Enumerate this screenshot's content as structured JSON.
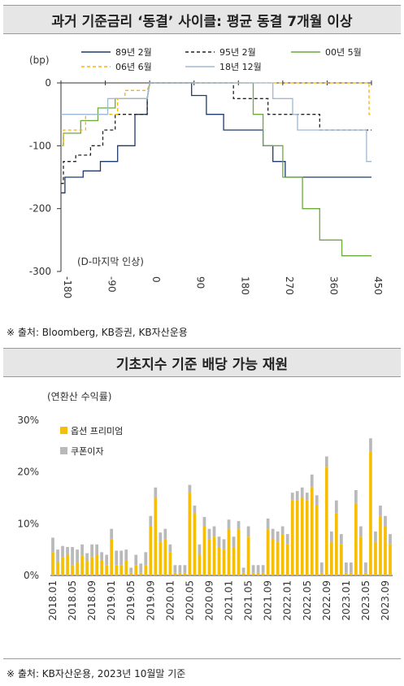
{
  "chart1": {
    "title": "과거 기준금리 ‘동결’ 사이클: 평균 동결 7개월 이상",
    "unit_label": "(bp)",
    "annotation": "(D-마지막 인상)",
    "source": "※ 출처: Bloomberg, KB증권, KB자산운용",
    "chart_data": {
      "type": "line",
      "title": "과거 기준금리 ‘동결’ 사이클: 평균 동결 7개월 이상",
      "ylabel": "(bp)",
      "xlim": [
        -180,
        450
      ],
      "ylim": [
        -300,
        0
      ],
      "x_ticks": [
        "-180",
        "-90",
        "0",
        "90",
        "180",
        "270",
        "360",
        "450"
      ],
      "y_ticks": [
        "0",
        "-100",
        "-200",
        "-300"
      ],
      "legend_position": "top",
      "series": [
        {
          "name": "89년 2월",
          "color": "#1f3a6e",
          "dash": "",
          "points": [
            [
              -180,
              -175
            ],
            [
              -172,
              -175
            ],
            [
              -172,
              -150
            ],
            [
              -135,
              -150
            ],
            [
              -135,
              -140
            ],
            [
              -100,
              -140
            ],
            [
              -100,
              -125
            ],
            [
              -65,
              -125
            ],
            [
              -65,
              -100
            ],
            [
              -30,
              -100
            ],
            [
              -30,
              -50
            ],
            [
              -5,
              -50
            ],
            [
              -5,
              -25
            ],
            [
              0,
              0
            ],
            [
              85,
              0
            ],
            [
              85,
              -20
            ],
            [
              115,
              -20
            ],
            [
              115,
              -50
            ],
            [
              150,
              -50
            ],
            [
              150,
              -75
            ],
            [
              230,
              -75
            ],
            [
              230,
              -100
            ],
            [
              250,
              -100
            ],
            [
              250,
              -125
            ],
            [
              275,
              -125
            ],
            [
              275,
              -150
            ],
            [
              450,
              -150
            ]
          ]
        },
        {
          "name": "95년 2월",
          "color": "#222222",
          "dash": "4,3",
          "points": [
            [
              -180,
              -160
            ],
            [
              -175,
              -160
            ],
            [
              -175,
              -125
            ],
            [
              -150,
              -125
            ],
            [
              -150,
              -115
            ],
            [
              -120,
              -115
            ],
            [
              -120,
              -100
            ],
            [
              -95,
              -100
            ],
            [
              -95,
              -75
            ],
            [
              -70,
              -75
            ],
            [
              -70,
              -50
            ],
            [
              -5,
              -50
            ],
            [
              -5,
              -25
            ],
            [
              0,
              0
            ],
            [
              170,
              0
            ],
            [
              170,
              -25
            ],
            [
              240,
              -25
            ],
            [
              240,
              -50
            ],
            [
              345,
              -50
            ],
            [
              345,
              -75
            ],
            [
              450,
              -75
            ]
          ]
        },
        {
          "name": "00년 5월",
          "color": "#6aaa3a",
          "dash": "",
          "points": [
            [
              -180,
              -100
            ],
            [
              -175,
              -100
            ],
            [
              -175,
              -80
            ],
            [
              -140,
              -80
            ],
            [
              -140,
              -60
            ],
            [
              -105,
              -60
            ],
            [
              -105,
              -40
            ],
            [
              -70,
              -40
            ],
            [
              -70,
              -25
            ],
            [
              -5,
              -25
            ],
            [
              0,
              0
            ],
            [
              210,
              0
            ],
            [
              210,
              -50
            ],
            [
              230,
              -50
            ],
            [
              230,
              -100
            ],
            [
              270,
              -100
            ],
            [
              270,
              -150
            ],
            [
              310,
              -150
            ],
            [
              310,
              -200
            ],
            [
              345,
              -200
            ],
            [
              345,
              -250
            ],
            [
              390,
              -250
            ],
            [
              390,
              -275
            ],
            [
              450,
              -275
            ]
          ]
        },
        {
          "name": "06년 6월",
          "color": "#f2b705",
          "dash": "4,3",
          "points": [
            [
              -180,
              -100
            ],
            [
              -175,
              -100
            ],
            [
              -175,
              -75
            ],
            [
              -130,
              -75
            ],
            [
              -130,
              -50
            ],
            [
              -65,
              -50
            ],
            [
              -65,
              -25
            ],
            [
              -50,
              -25
            ],
            [
              -50,
              -12
            ],
            [
              -30,
              -12
            ],
            [
              -5,
              -12
            ],
            [
              0,
              0
            ],
            [
              445,
              0
            ],
            [
              445,
              -50
            ],
            [
              450,
              -50
            ]
          ]
        },
        {
          "name": "18년 12월",
          "color": "#9fb8d6",
          "dash": "",
          "points": [
            [
              -180,
              -50
            ],
            [
              -85,
              -50
            ],
            [
              -85,
              -25
            ],
            [
              -5,
              -25
            ],
            [
              0,
              0
            ],
            [
              250,
              0
            ],
            [
              250,
              -25
            ],
            [
              290,
              -25
            ],
            [
              290,
              -50
            ],
            [
              300,
              -50
            ],
            [
              300,
              -75
            ],
            [
              440,
              -75
            ],
            [
              440,
              -125
            ],
            [
              450,
              -125
            ]
          ]
        }
      ]
    }
  },
  "chart2": {
    "title": "기초지수 기준 배당 가능 재원",
    "unit_label": "(연환산 수익률)",
    "source": "※ 출처: KB자산운용, 2023년 10월말 기준",
    "chart_data": {
      "type": "bar",
      "stacked": true,
      "title": "기초지수 기준 배당 가능 재원",
      "ylabel": "(연환산 수익률)",
      "ylim": [
        0,
        30
      ],
      "y_ticks": [
        "0%",
        "10%",
        "20%",
        "30%"
      ],
      "x_ticks": [
        "2018.01",
        "2018.05",
        "2018.09",
        "2019.01",
        "2019.05",
        "2019.09",
        "2020.01",
        "2020.05",
        "2020.09",
        "2021.01",
        "2021.05",
        "2021.09",
        "2022.01",
        "2022.05",
        "2022.09",
        "2023.01",
        "2023.05",
        "2023.09"
      ],
      "legend_position": "top-left",
      "categories": [
        "2018.01",
        "2018.02",
        "2018.03",
        "2018.04",
        "2018.05",
        "2018.06",
        "2018.07",
        "2018.08",
        "2018.09",
        "2018.10",
        "2018.11",
        "2018.12",
        "2019.01",
        "2019.02",
        "2019.03",
        "2019.04",
        "2019.05",
        "2019.06",
        "2019.07",
        "2019.08",
        "2019.09",
        "2019.10",
        "2019.11",
        "2019.12",
        "2020.01",
        "2020.02",
        "2020.03",
        "2020.04",
        "2020.05",
        "2020.06",
        "2020.07",
        "2020.08",
        "2020.09",
        "2020.10",
        "2020.11",
        "2020.12",
        "2021.01",
        "2021.02",
        "2021.03",
        "2021.04",
        "2021.05",
        "2021.06",
        "2021.07",
        "2021.08",
        "2021.09",
        "2021.10",
        "2021.11",
        "2021.12",
        "2022.01",
        "2022.02",
        "2022.03",
        "2022.04",
        "2022.05",
        "2022.06",
        "2022.07",
        "2022.08",
        "2022.09",
        "2022.10",
        "2022.11",
        "2022.12",
        "2023.01",
        "2023.02",
        "2023.03",
        "2023.04",
        "2023.05",
        "2023.06",
        "2023.07",
        "2023.08",
        "2023.09",
        "2023.10"
      ],
      "series": [
        {
          "name": "옵션 프리미엄",
          "color": "#f5be0b",
          "values": [
            4.5,
            2.5,
            3.5,
            4.0,
            2.0,
            2.5,
            3.8,
            2.8,
            3.5,
            4.0,
            3.0,
            2.0,
            7.0,
            2.0,
            2.0,
            3.0,
            0.5,
            2.0,
            0.5,
            2.0,
            9.5,
            15.0,
            6.5,
            7.0,
            4.5,
            0.5,
            0.5,
            0.5,
            16.0,
            12.0,
            4.0,
            9.5,
            7.0,
            7.5,
            5.5,
            5.0,
            9.0,
            5.5,
            9.0,
            0.5,
            7.5,
            0.5,
            0.5,
            0.5,
            9.0,
            7.0,
            6.5,
            8.0,
            6.0,
            14.5,
            14.5,
            15.0,
            14.5,
            17.0,
            13.5,
            0.5,
            21.0,
            6.5,
            12.0,
            6.0,
            0.5,
            0.5,
            14.0,
            7.5,
            0.5,
            24.0,
            6.5,
            11.5,
            9.5,
            6.0
          ]
        },
        {
          "name": "쿠폰이자",
          "color": "#b9b9b9",
          "values": [
            2.8,
            2.5,
            2.2,
            1.5,
            3.5,
            2.5,
            2.2,
            1.5,
            2.5,
            2.0,
            1.5,
            2.0,
            2.0,
            2.8,
            2.8,
            2.0,
            1.0,
            2.0,
            1.8,
            2.5,
            2.0,
            2.0,
            1.8,
            2.0,
            1.5,
            1.5,
            1.5,
            1.5,
            1.5,
            1.5,
            2.0,
            1.8,
            2.0,
            2.0,
            2.0,
            2.0,
            1.8,
            2.0,
            1.5,
            1.0,
            2.0,
            1.5,
            1.5,
            1.5,
            2.0,
            2.0,
            2.0,
            1.5,
            2.0,
            1.5,
            1.8,
            2.0,
            1.5,
            2.5,
            2.0,
            2.0,
            2.0,
            2.0,
            2.5,
            2.0,
            2.0,
            2.0,
            2.5,
            2.0,
            2.0,
            2.5,
            2.0,
            2.0,
            2.0,
            2.0
          ]
        }
      ]
    }
  }
}
